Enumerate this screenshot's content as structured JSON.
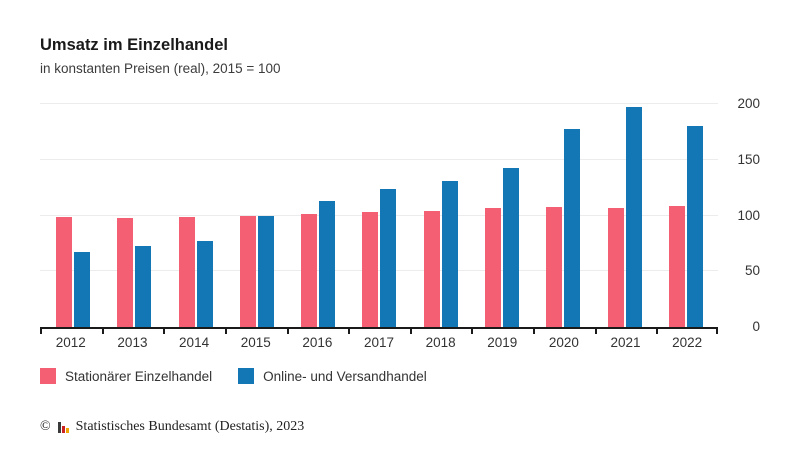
{
  "header": {
    "title": "Umsatz im Einzelhandel",
    "subtitle": "in konstanten Preisen (real), 2015 = 100"
  },
  "chart_data": {
    "type": "bar",
    "title": "Umsatz im Einzelhandel",
    "subtitle": "in konstanten Preisen (real), 2015 = 100",
    "categories": [
      "2012",
      "2013",
      "2014",
      "2015",
      "2016",
      "2017",
      "2018",
      "2019",
      "2020",
      "2021",
      "2022"
    ],
    "series": [
      {
        "name": "Stationärer Einzelhandel",
        "color": "#f55f73",
        "values": [
          99,
          98,
          99,
          100,
          102,
          103,
          104,
          107,
          108,
          107,
          109
        ]
      },
      {
        "name": "Online- und Versandhandel",
        "color": "#1277b4",
        "values": [
          67,
          73,
          77,
          100,
          113,
          124,
          131,
          143,
          178,
          198,
          181
        ]
      }
    ],
    "y_ticks": [
      0,
      50,
      100,
      150,
      200
    ],
    "ylim": [
      0,
      213
    ],
    "grid": true,
    "axis_side": "right",
    "legend_position": "bottom"
  },
  "colors": {
    "axis": "#1a1a1a",
    "grid": "#ececec",
    "text": "#333333"
  },
  "footer": {
    "copyright_symbol": "©",
    "text": "Statistisches Bundesamt (Destatis), 2023"
  }
}
